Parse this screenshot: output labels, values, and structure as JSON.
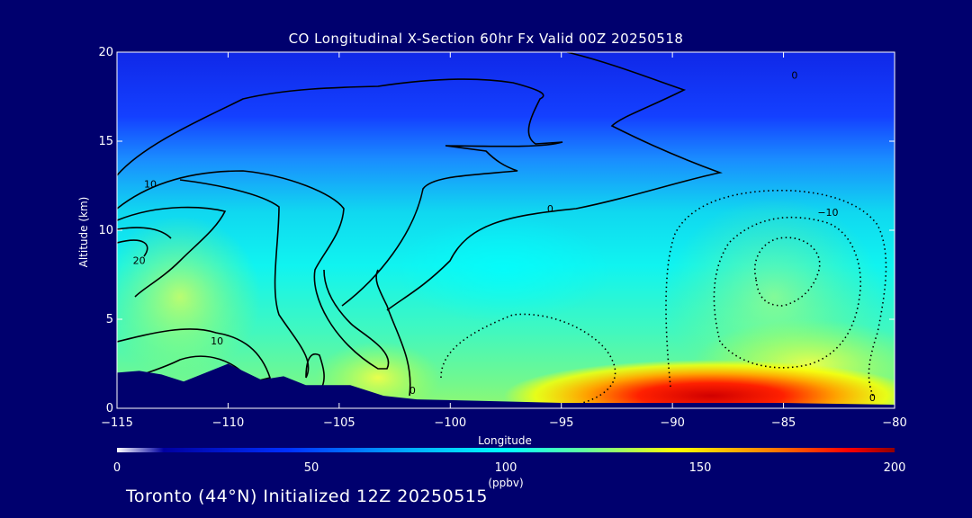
{
  "chart_data": {
    "type": "heatmap",
    "title": "CO Longitudinal X-Section 60hr  Fx Valid 00Z 20250518",
    "xlabel": "Longitude",
    "ylabel": "Altitude (km)",
    "x_ticks": [
      -115,
      -110,
      -105,
      -100,
      -95,
      -90,
      -85,
      -80
    ],
    "y_ticks": [
      0,
      5,
      10,
      15,
      20
    ],
    "xlim": [
      -115,
      -80
    ],
    "ylim": [
      0,
      20
    ],
    "colorbar": {
      "label": "(ppbv)",
      "range": [
        0,
        200
      ],
      "ticks": [
        0,
        50,
        100,
        150,
        200
      ],
      "colors": [
        "#ffffff",
        "#000080",
        "#0000ff",
        "#0060ff",
        "#00c8ff",
        "#00ffff",
        "#40ffb0",
        "#a0ff60",
        "#ffff00",
        "#ff9000",
        "#ff0000",
        "#800000"
      ]
    },
    "layers": [
      {
        "alt_top": 20,
        "co_ppbv": 30
      },
      {
        "alt_top": 15,
        "co_ppbv": 45
      },
      {
        "alt_top": 12,
        "co_ppbv": 65
      },
      {
        "alt_top": 9,
        "co_ppbv": 80
      },
      {
        "alt_top": 5,
        "co_ppbv": 95
      },
      {
        "alt_top": 2,
        "co_ppbv": 110
      }
    ],
    "hotspots": [
      {
        "lon": -88,
        "alt": 0.6,
        "co_ppbv": 190
      },
      {
        "lon": -83,
        "alt": 1.2,
        "co_ppbv": 160
      }
    ],
    "contour_labels": [
      {
        "text": "0",
        "lon": -84.5,
        "alt": 18.7
      },
      {
        "text": "0",
        "lon": -95.5,
        "alt": 11.2
      },
      {
        "text": "-10",
        "lon": -83,
        "alt": 11.0
      },
      {
        "text": "10",
        "lon": -113.5,
        "alt": 12.6
      },
      {
        "text": "20",
        "lon": -114,
        "alt": 8.3
      },
      {
        "text": "10",
        "lon": -110.5,
        "alt": 3.8
      },
      {
        "text": "0",
        "lon": -101.7,
        "alt": 1.0
      },
      {
        "text": "0",
        "lon": -81,
        "alt": 0.6
      }
    ],
    "terrain": [
      {
        "lon": -115,
        "alt": 2.0
      },
      {
        "lon": -114,
        "alt": 2.1
      },
      {
        "lon": -113,
        "alt": 1.9
      },
      {
        "lon": -112,
        "alt": 1.5
      },
      {
        "lon": -110,
        "alt": 2.5
      },
      {
        "lon": -108.5,
        "alt": 1.6
      },
      {
        "lon": -107.5,
        "alt": 1.8
      },
      {
        "lon": -106.5,
        "alt": 1.3
      },
      {
        "lon": -104.5,
        "alt": 1.3
      },
      {
        "lon": -103,
        "alt": 0.7
      },
      {
        "lon": -101.5,
        "alt": 0.5
      },
      {
        "lon": -98,
        "alt": 0.4
      },
      {
        "lon": -95,
        "alt": 0.3
      },
      {
        "lon": -90,
        "alt": 0.3
      },
      {
        "lon": -85,
        "alt": 0.3
      },
      {
        "lon": -80,
        "alt": 0.2
      }
    ]
  },
  "footer_text": "Toronto (44°N) Initialized 12Z 20250515"
}
